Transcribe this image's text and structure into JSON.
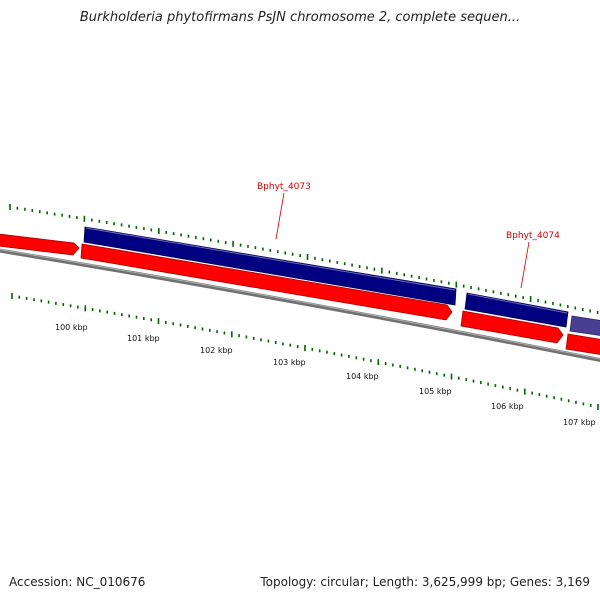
{
  "title": "Burkholderia phytofirmans PsJN chromosome 2, complete sequen...",
  "accession_text": "Accession: NC_010676",
  "summary_text": "Topology: circular; Length: 3,625,999 bp; Genes: 3,169",
  "colors": {
    "forward_strand_gene": "#000080",
    "forward_strand_gene_alt": "#4a3e93",
    "reverse_strand_gene": "#ff0000",
    "backbone": "#808080",
    "ticks": "#006400",
    "gene_label": "#cc0000"
  },
  "scale_labels": [
    "100 kbp",
    "101 kbp",
    "102 kbp",
    "103 kbp",
    "104 kbp",
    "105 kbp",
    "106 kbp",
    "107 kbp"
  ],
  "gene_labels": [
    {
      "name": "Bphyt_4073"
    },
    {
      "name": "Bphyt_4074"
    }
  ]
}
